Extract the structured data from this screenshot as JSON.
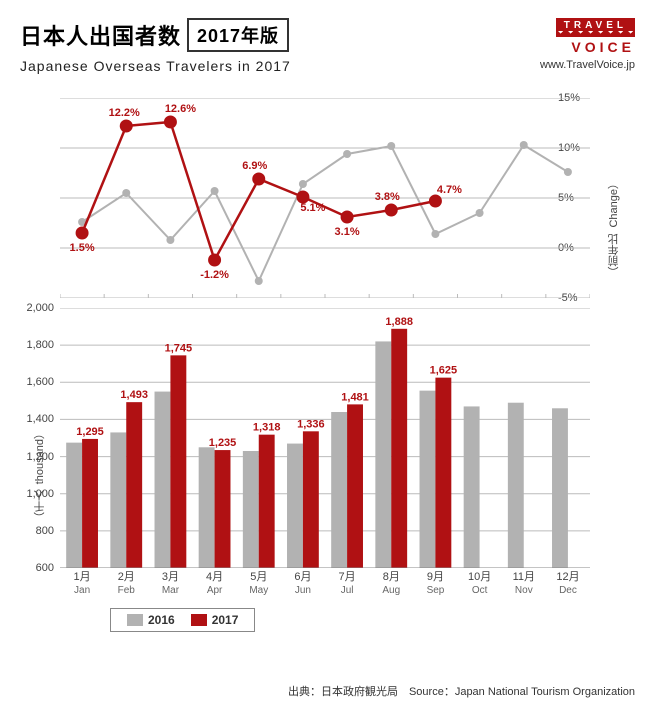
{
  "header": {
    "title_jp": "日本人出国者数",
    "title_year": "2017年版",
    "subtitle_en": "Japanese Overseas Travelers in 2017",
    "logo_top": "TRAVEL",
    "logo_bottom": "VOICE",
    "logo_url": "www.TravelVoice.jp"
  },
  "colors": {
    "series_2016": "#b2b2b2",
    "series_2017": "#b01113",
    "grid": "#bbbbbb",
    "text": "#333333",
    "background": "#ffffff"
  },
  "line_chart": {
    "type": "line",
    "ylabel_jp": "（前年比",
    "ylabel_en": "Change）",
    "ymin": -5,
    "ymax": 15,
    "ytick_step": 5,
    "yticks": [
      "-5%",
      "0%",
      "5%",
      "10%",
      "15%"
    ],
    "marker_radius_2016": 4,
    "marker_radius_2017": 6,
    "series_2016": [
      2.6,
      5.5,
      0.8,
      5.7,
      -3.3,
      6.4,
      9.4,
      10.2,
      1.4,
      3.5,
      10.3,
      7.6
    ],
    "series_2017": [
      1.5,
      12.2,
      12.6,
      -1.2,
      6.9,
      5.1,
      3.1,
      3.8,
      4.7
    ],
    "labels_2017": [
      "1.5%",
      "12.2%",
      "12.6%",
      "-1.2%",
      "6.9%",
      "5.1%",
      "3.1%",
      "3.8%",
      "4.7%"
    ]
  },
  "bar_chart": {
    "type": "bar",
    "ylabel_jp": "（千人",
    "ylabel_en": "thousand）",
    "ymin": 600,
    "ymax": 2000,
    "ytick_step": 200,
    "yticks": [
      "600",
      "800",
      "1,000",
      "1,200",
      "1,400",
      "1,600",
      "1,800",
      "2,000"
    ],
    "bar_group_width": 0.72,
    "series_2016": [
      1275,
      1330,
      1550,
      1250,
      1230,
      1270,
      1440,
      1820,
      1555,
      1470,
      1490,
      1460
    ],
    "series_2017": [
      1295,
      1493,
      1745,
      1235,
      1318,
      1336,
      1481,
      1888,
      1625
    ],
    "labels_2017": [
      "1,295",
      "1,493",
      "1,745",
      "1,235",
      "1,318",
      "1,336",
      "1,481",
      "1,888",
      "1,625"
    ]
  },
  "x_axis": {
    "labels_jp": [
      "1月",
      "2月",
      "3月",
      "4月",
      "5月",
      "6月",
      "7月",
      "8月",
      "9月",
      "10月",
      "11月",
      "12月"
    ],
    "labels_en": [
      "Jan",
      "Feb",
      "Mar",
      "Apr",
      "May",
      "Jun",
      "Jul",
      "Aug",
      "Sep",
      "Oct",
      "Nov",
      "Dec"
    ]
  },
  "legend": {
    "item1": "2016",
    "item2": "2017"
  },
  "source": {
    "jp": "出典：日本政府観光局",
    "en": "Source：Japan  National Tourism  Organization"
  }
}
